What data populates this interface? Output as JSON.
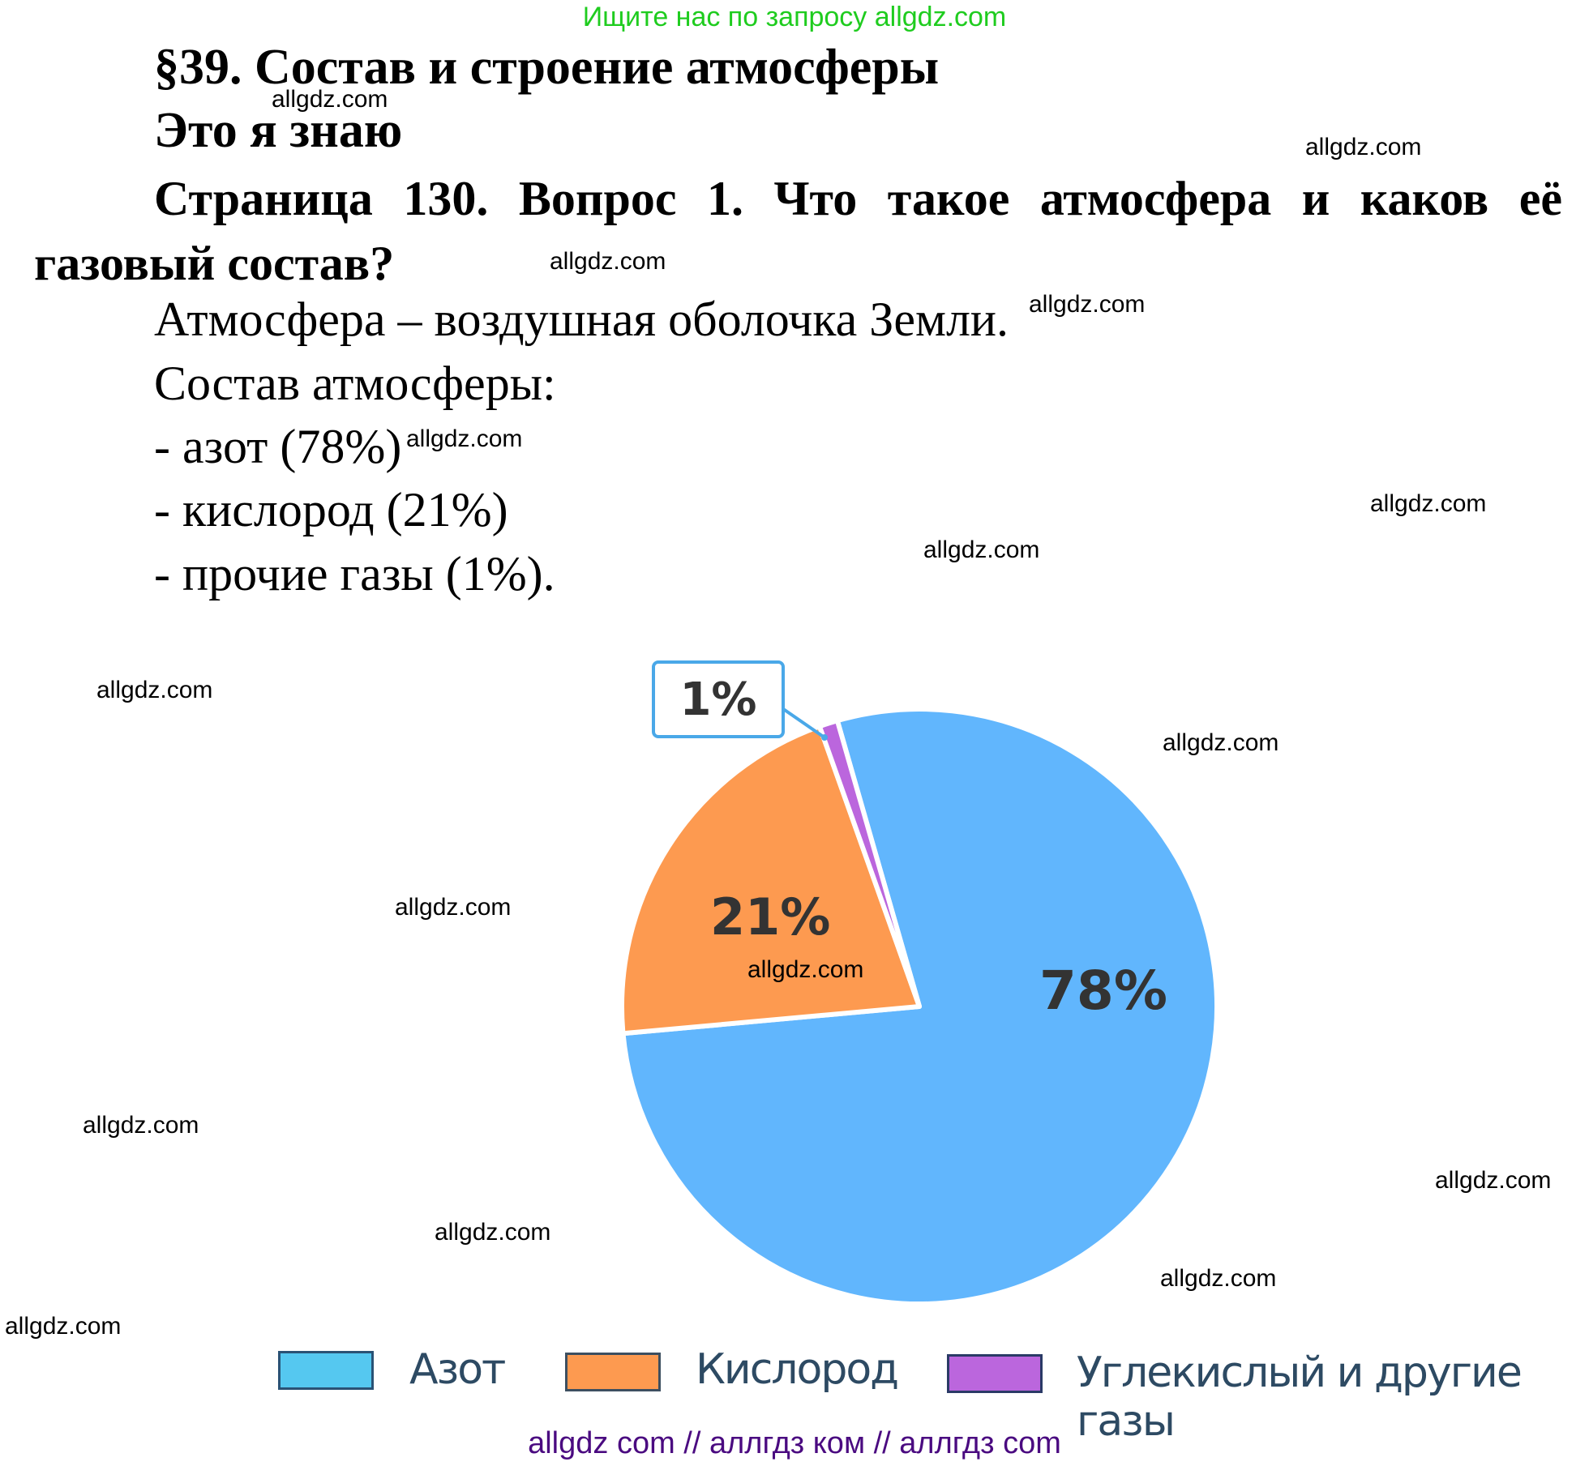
{
  "header": {
    "promo": "Ищите нас по запросу allgdz.com",
    "section_title": "§39. Состав и строение атмосферы",
    "subsection_title": "Это я знаю",
    "question_line1": "Страница 130. Вопрос 1.    Что такое атмосфера и каков её",
    "question_line2": "газовый состав?"
  },
  "answer": {
    "definition": "Атмосфера – воздушная оболочка Земли.",
    "composition_title": "Состав атмосферы:",
    "items": [
      "- азот (78%)",
      "- кислород (21%)",
      "- прочие газы (1%)."
    ]
  },
  "watermarks": {
    "text": "allgdz.com",
    "bottom": "allgdz com  //  аллгдз ком  //  аллгдз com"
  },
  "chart_data": {
    "type": "pie",
    "title": "",
    "categories": [
      "Азот",
      "Кислород",
      "Углекислый и другие газы"
    ],
    "values": [
      78,
      21,
      1
    ],
    "labels": [
      "78%",
      "21%",
      "1%"
    ],
    "colors": [
      "#61b6fd",
      "#fd9a50",
      "#bb66dd"
    ],
    "legend_colors": [
      "#55c8f0",
      "#fd9a50",
      "#bb66dd"
    ],
    "start_angle_deg": 344,
    "legend_position": "bottom"
  }
}
